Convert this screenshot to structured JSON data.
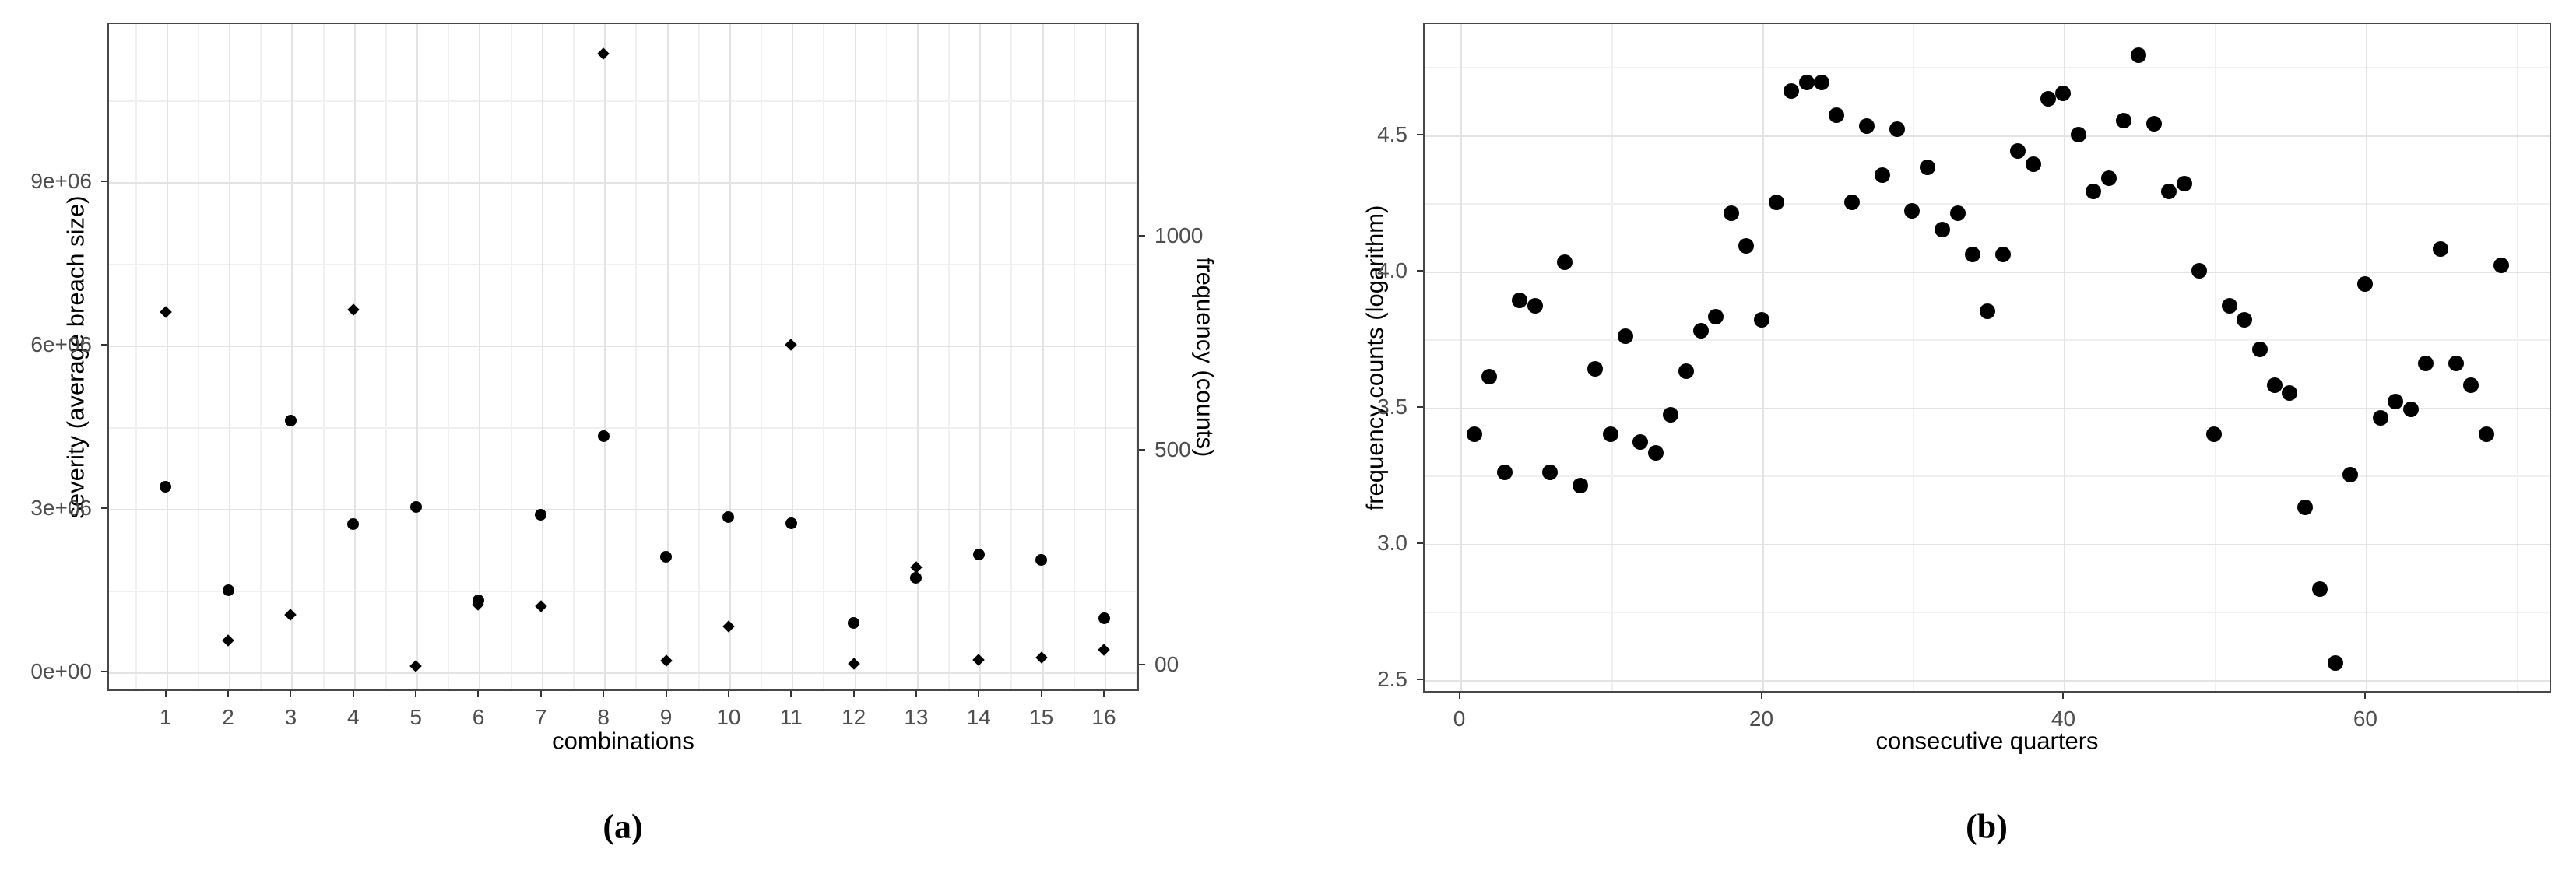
{
  "figure": {
    "captions": {
      "a": "(a)",
      "b": "(b)"
    }
  },
  "colors": {
    "marker": "#000000",
    "grid_major": "#e3e3e3",
    "grid_minor": "#f0f0f0",
    "panel_border": "#474747",
    "tick_text": "#4d4d4d",
    "title_text": "#000000"
  },
  "chart_data": [
    {
      "id": "a",
      "type": "scatter",
      "xlabel": "combinations",
      "ylabel_left": "severity (average breach size)",
      "ylabel_right": "frequency (counts)",
      "x_domain": [
        0.07,
        16.56
      ],
      "x_tick_values": [
        1,
        2,
        3,
        4,
        5,
        6,
        7,
        8,
        9,
        10,
        11,
        12,
        13,
        14,
        15,
        16
      ],
      "x_tick_labels": [
        "1",
        "2",
        "3",
        "4",
        "5",
        "6",
        "7",
        "8",
        "9",
        "10",
        "11",
        "12",
        "13",
        "14",
        "15",
        "16"
      ],
      "x_minor_values": [
        0.5,
        1.5,
        2.5,
        3.5,
        4.5,
        5.5,
        6.5,
        7.5,
        8.5,
        9.5,
        10.5,
        11.5,
        12.5,
        13.5,
        14.5,
        15.5,
        16.5
      ],
      "y_left": {
        "domain": [
          -360000,
          11910000
        ],
        "tick_values": [
          0,
          3000000,
          6000000,
          9000000
        ],
        "tick_labels": [
          "0e+00",
          "3e+06",
          "6e+06",
          "9e+06"
        ],
        "minor_values": [
          1500000,
          4500000,
          7500000,
          10500000
        ]
      },
      "y_right": {
        "domain": [
          -61,
          1496
        ],
        "tick_values": [
          0,
          500,
          1000
        ],
        "tick_labels": [
          "00",
          "500",
          "1000"
        ]
      },
      "grid": true,
      "legend": "none",
      "series": [
        {
          "name": "severity (average breach size)",
          "marker": "diamond",
          "axis": "left",
          "x": [
            1,
            2,
            3,
            4,
            5,
            6,
            7,
            8,
            9,
            10,
            11,
            12,
            13,
            14,
            15,
            16
          ],
          "values": [
            6600000,
            570000,
            1040000,
            6640000,
            100000,
            1230000,
            1190000,
            11340000,
            190000,
            830000,
            5990000,
            140000,
            1910000,
            210000,
            260000,
            390000
          ]
        },
        {
          "name": "frequency (counts)",
          "marker": "circle",
          "axis": "right",
          "x": [
            1,
            2,
            3,
            4,
            5,
            6,
            7,
            8,
            9,
            10,
            11,
            12,
            13,
            14,
            15,
            16
          ],
          "values": [
            414,
            173,
            568,
            327,
            367,
            151,
            350,
            533,
            252,
            345,
            330,
            97,
            202,
            258,
            245,
            109
          ]
        }
      ]
    },
    {
      "id": "b",
      "type": "scatter",
      "xlabel": "consecutive quarters",
      "ylabel": "frequency counts (logarithm)",
      "x_domain": [
        -2.4,
        72.3
      ],
      "x_tick_values": [
        0,
        20,
        40,
        60
      ],
      "x_tick_labels": [
        "0",
        "20",
        "40",
        "60"
      ],
      "x_minor_values": [
        10,
        30,
        50,
        70
      ],
      "y": {
        "domain": [
          2.45,
          4.91
        ],
        "tick_values": [
          2.5,
          3.0,
          3.5,
          4.0,
          4.5
        ],
        "tick_labels": [
          "2.5",
          "3.0",
          "3.5",
          "4.0",
          "4.5"
        ],
        "minor_values": [
          2.75,
          3.25,
          3.75,
          4.25,
          4.75
        ]
      },
      "grid": true,
      "legend": "none",
      "series": [
        {
          "name": "frequency counts (logarithm)",
          "marker": "circle",
          "x": [
            1,
            2,
            3,
            4,
            5,
            6,
            7,
            8,
            9,
            10,
            11,
            12,
            13,
            14,
            15,
            16,
            17,
            18,
            19,
            20,
            21,
            22,
            23,
            24,
            25,
            26,
            27,
            28,
            29,
            30,
            31,
            32,
            33,
            34,
            35,
            36,
            37,
            38,
            39,
            40,
            41,
            42,
            43,
            44,
            45,
            46,
            47,
            48,
            49,
            50,
            51,
            52,
            53,
            54,
            55,
            56,
            57,
            58,
            59,
            60,
            61,
            62,
            63,
            64,
            65,
            66,
            67,
            68,
            69
          ],
          "values": [
            3.4,
            3.61,
            3.26,
            3.89,
            3.87,
            3.26,
            4.03,
            3.21,
            3.64,
            3.4,
            3.76,
            3.37,
            3.33,
            3.47,
            3.63,
            3.78,
            3.83,
            4.21,
            4.09,
            3.82,
            4.25,
            4.66,
            4.69,
            4.69,
            4.57,
            4.25,
            4.53,
            4.35,
            4.52,
            4.22,
            4.38,
            4.15,
            4.21,
            4.06,
            3.85,
            4.06,
            4.44,
            4.39,
            4.63,
            4.65,
            4.5,
            4.29,
            4.34,
            4.55,
            4.79,
            4.54,
            4.29,
            4.32,
            4.0,
            3.4,
            3.87,
            3.82,
            3.71,
            3.58,
            3.55,
            3.13,
            2.83,
            2.56,
            3.25,
            3.95,
            3.46,
            3.52,
            3.49,
            3.66,
            4.08,
            3.66,
            3.58,
            3.4,
            4.02
          ]
        }
      ]
    }
  ]
}
